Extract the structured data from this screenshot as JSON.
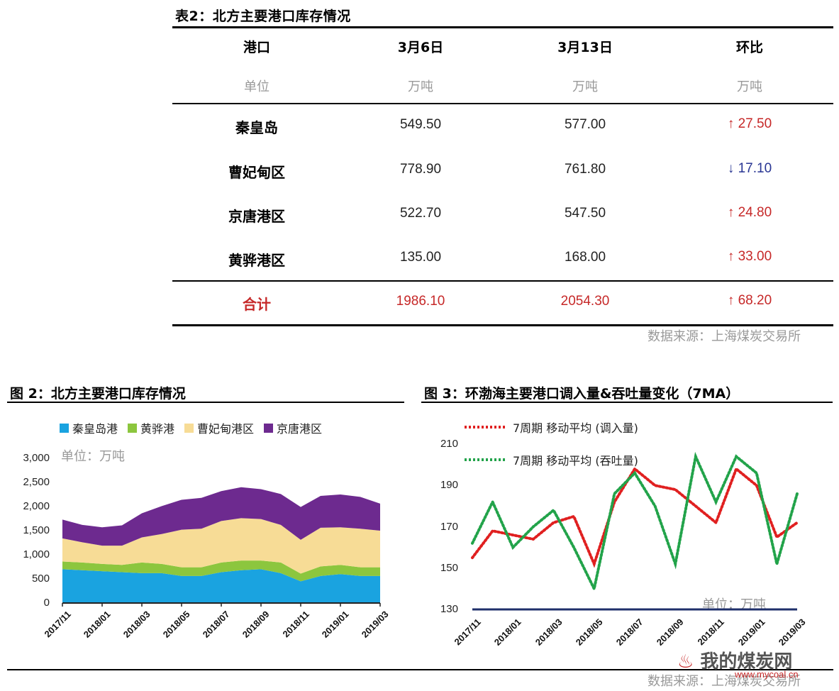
{
  "table": {
    "title": "表2：北方主要港口库存情况",
    "headers": [
      "港口",
      "3月6日",
      "3月13日",
      "环比"
    ],
    "units": [
      "单位",
      "万吨",
      "万吨",
      "万吨"
    ],
    "rows": [
      {
        "name": "秦皇岛",
        "mar6": "549.50",
        "mar13": "577.00",
        "arrow": "↑",
        "change": "27.50",
        "dir": "up"
      },
      {
        "name": "曹妃甸区",
        "mar6": "778.90",
        "mar13": "761.80",
        "arrow": "↓",
        "change": "17.10",
        "dir": "down"
      },
      {
        "name": "京唐港区",
        "mar6": "522.70",
        "mar13": "547.50",
        "arrow": "↑",
        "change": "24.80",
        "dir": "up"
      },
      {
        "name": "黄骅港区",
        "mar6": "135.00",
        "mar13": "168.00",
        "arrow": "↑",
        "change": "33.00",
        "dir": "up"
      }
    ],
    "total": {
      "name": "合计",
      "mar6": "1986.10",
      "mar13": "2054.30",
      "arrow": "↑",
      "change": "68.20"
    },
    "source": "数据来源：上海煤炭交易所"
  },
  "chart_data": [
    {
      "type": "area",
      "title": "图 2：北方主要港口库存情况",
      "unit_note": "单位：万吨",
      "stacked": true,
      "ylim": [
        0,
        3000
      ],
      "yticks": [
        "3,000",
        "2,500",
        "2,000",
        "1,500",
        "1,000",
        "500",
        "0"
      ],
      "xticks": [
        "2017/11",
        "2018/01",
        "2018/03",
        "2018/05",
        "2018/07",
        "2018/09",
        "2018/11",
        "2019/01",
        "2019/03"
      ],
      "x": [
        "2017/11",
        "2017/12",
        "2018/01",
        "2018/02",
        "2018/03",
        "2018/04",
        "2018/05",
        "2018/06",
        "2018/07",
        "2018/08",
        "2018/09",
        "2018/10",
        "2018/11",
        "2018/12",
        "2019/01",
        "2019/02",
        "2019/03"
      ],
      "series": [
        {
          "name": "秦皇岛港",
          "color": "#1aa3e0",
          "values": [
            700,
            680,
            660,
            640,
            620,
            620,
            560,
            560,
            640,
            680,
            700,
            620,
            450,
            560,
            600,
            560,
            560
          ]
        },
        {
          "name": "黄骅港",
          "color": "#8cc63e",
          "values": [
            160,
            160,
            150,
            150,
            220,
            190,
            180,
            180,
            200,
            200,
            180,
            220,
            160,
            200,
            190,
            180,
            180
          ]
        },
        {
          "name": "曹妃甸港区",
          "color": "#f7dc96",
          "values": [
            480,
            420,
            380,
            400,
            520,
            620,
            780,
            800,
            860,
            880,
            860,
            780,
            700,
            800,
            780,
            800,
            760
          ]
        },
        {
          "name": "京唐港区",
          "color": "#6d2a8f",
          "values": [
            390,
            360,
            380,
            420,
            500,
            580,
            620,
            640,
            620,
            640,
            620,
            640,
            680,
            660,
            680,
            660,
            560
          ]
        }
      ]
    },
    {
      "type": "line",
      "title": "图 3：环渤海主要港口调入量&吞吐量变化（7MA）",
      "unit_note": "单位：万吨",
      "ylim": [
        130,
        210
      ],
      "yticks": [
        "210",
        "190",
        "170",
        "150",
        "130"
      ],
      "xticks": [
        "2017/11",
        "2018/01",
        "2018/03",
        "2018/05",
        "2018/07",
        "2018/09",
        "2018/11",
        "2019/01",
        "2019/03"
      ],
      "x": [
        "2017/11",
        "2017/12",
        "2018/01",
        "2018/02",
        "2018/03",
        "2018/04",
        "2018/05",
        "2018/06",
        "2018/07",
        "2018/08",
        "2018/09",
        "2018/10",
        "2018/11",
        "2018/12",
        "2019/01",
        "2019/02",
        "2019/03"
      ],
      "series": [
        {
          "name": "7周期 移动平均 (调入量)",
          "color": "#e02020",
          "values": [
            155,
            168,
            166,
            164,
            172,
            175,
            152,
            182,
            198,
            190,
            188,
            180,
            172,
            198,
            190,
            165,
            172
          ]
        },
        {
          "name": "7周期 移动平均 (吞吐量)",
          "color": "#22a34a",
          "values": [
            162,
            182,
            160,
            170,
            178,
            160,
            140,
            186,
            196,
            180,
            152,
            204,
            182,
            204,
            196,
            152,
            186
          ]
        }
      ]
    }
  ],
  "charts_source": "数据来源：上海煤炭交易所",
  "watermark": {
    "name": "我的煤炭网",
    "url": "www.mycoal.cn"
  }
}
